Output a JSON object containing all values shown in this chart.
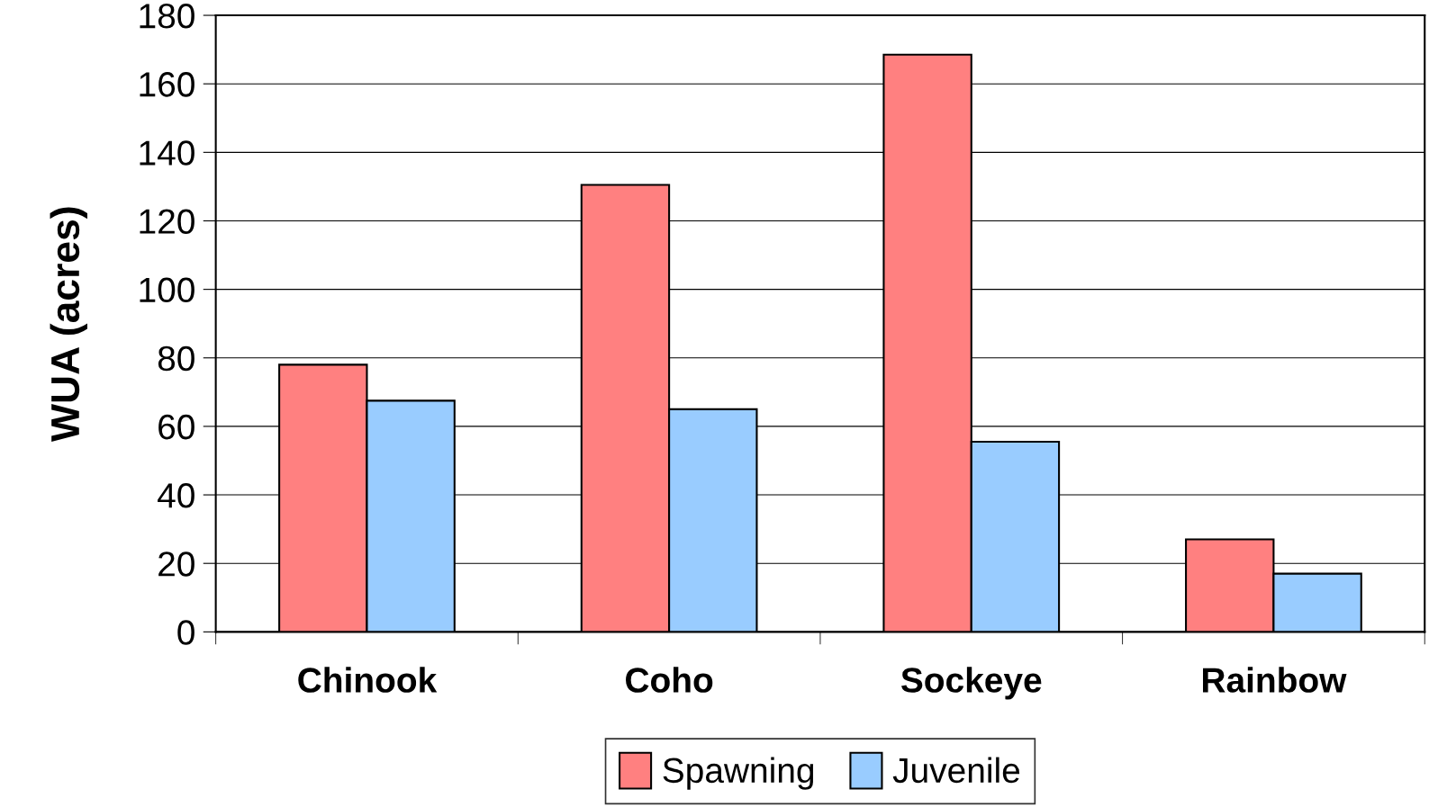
{
  "chart_data": {
    "type": "bar",
    "ylabel": "WUA (acres)",
    "categories": [
      "Chinook",
      "Coho",
      "Sockeye",
      "Rainbow"
    ],
    "series": [
      {
        "name": "Spawning",
        "color": "#ff8080",
        "values": [
          78,
          130.5,
          168.5,
          27
        ]
      },
      {
        "name": "Juvenile",
        "color": "#99ccff",
        "values": [
          67.5,
          65,
          55.5,
          17
        ]
      }
    ],
    "ylim": [
      0,
      180
    ],
    "yticks": [
      0,
      20,
      40,
      60,
      80,
      100,
      120,
      140,
      160,
      180
    ],
    "grid": "y",
    "legend": "bottom"
  }
}
